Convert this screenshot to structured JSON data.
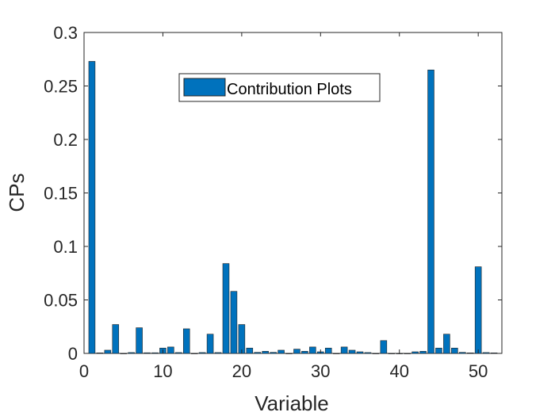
{
  "chart_data": {
    "type": "bar",
    "title": "",
    "xlabel": "Variable",
    "ylabel": "CPs",
    "xlim": [
      0,
      53
    ],
    "ylim": [
      0,
      0.3
    ],
    "xticks": [
      0,
      10,
      20,
      30,
      40,
      50
    ],
    "yticks": [
      0,
      0.05,
      0.1,
      0.15,
      0.2,
      0.25,
      0.3
    ],
    "xtick_labels": [
      "0",
      "10",
      "20",
      "30",
      "40",
      "50"
    ],
    "ytick_labels": [
      "0",
      "0.05",
      "0.1",
      "0.15",
      "0.2",
      "0.25",
      "0.3"
    ],
    "legend": {
      "entries": [
        "Contribution Plots"
      ],
      "position": "top-center"
    },
    "grid": false,
    "series": [
      {
        "name": "Contribution Plots",
        "color": "#0072BD",
        "x": [
          1,
          2,
          3,
          4,
          5,
          6,
          7,
          8,
          9,
          10,
          11,
          12,
          13,
          14,
          15,
          16,
          17,
          18,
          19,
          20,
          21,
          22,
          23,
          24,
          25,
          26,
          27,
          28,
          29,
          30,
          31,
          32,
          33,
          34,
          35,
          36,
          37,
          38,
          39,
          40,
          41,
          42,
          43,
          44,
          45,
          46,
          47,
          48,
          49,
          50,
          51,
          52
        ],
        "values": [
          0.273,
          0.0005,
          0.003,
          0.027,
          0,
          0.0008,
          0.024,
          0.0006,
          0.0006,
          0.005,
          0.006,
          0.0008,
          0.023,
          0,
          0.0008,
          0.018,
          0.0008,
          0.084,
          0.058,
          0.027,
          0.005,
          0.001,
          0.002,
          0.001,
          0.003,
          0,
          0.004,
          0.002,
          0.006,
          0.0015,
          0.005,
          0,
          0.006,
          0.003,
          0.0015,
          0.0008,
          0,
          0.012,
          0,
          0,
          0,
          0.0015,
          0.002,
          0.265,
          0.005,
          0.018,
          0.005,
          0.001,
          0.0005,
          0.081,
          0.0008,
          0.0005
        ]
      }
    ]
  }
}
